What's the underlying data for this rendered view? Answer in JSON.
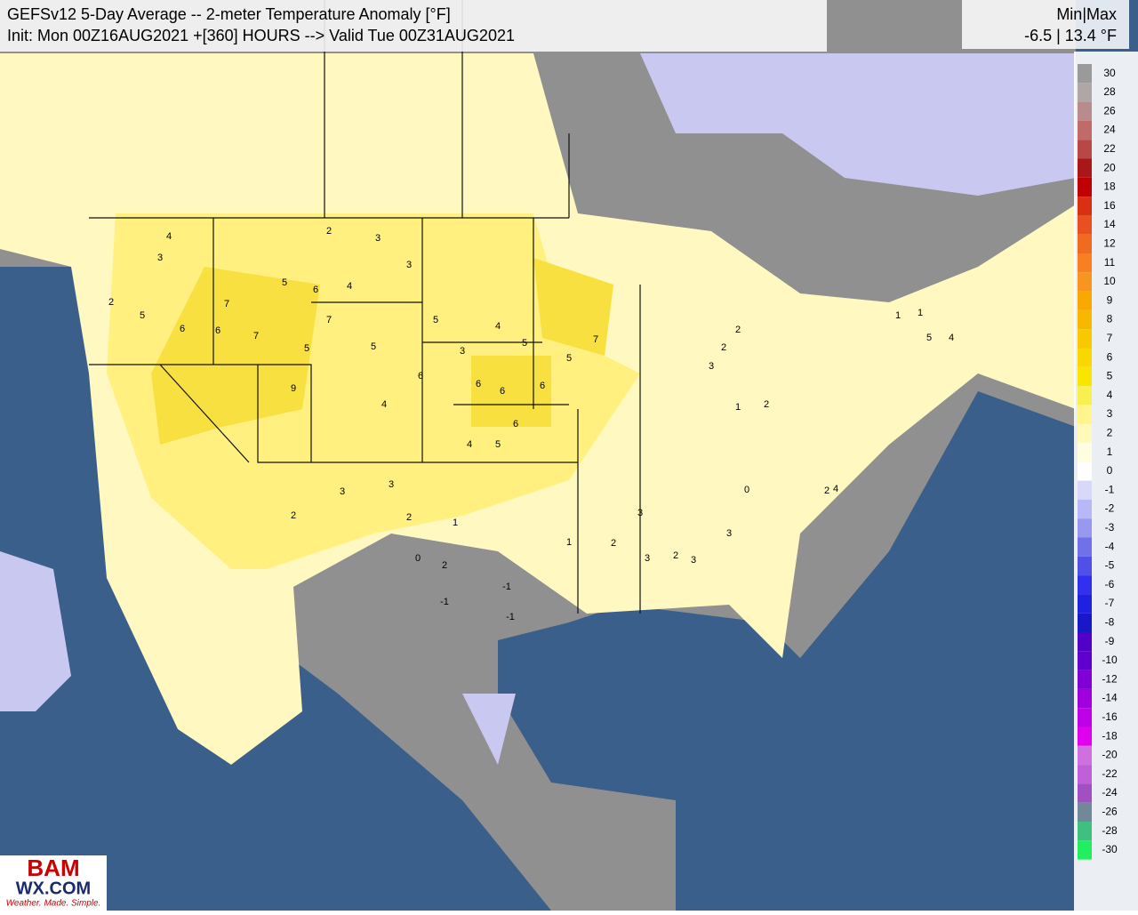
{
  "header": {
    "title": "GEFSv12 5-Day Average -- 2-meter Temperature Anomaly [°F]",
    "subtitle": "Init: Mon 00Z16AUG2021 +[360] HOURS --> Valid Tue 00Z31AUG2021",
    "minmax_label": "Min|Max",
    "minmax_value": "-6.5 | 13.4 °F"
  },
  "colorbar": {
    "levels": [
      30,
      28,
      26,
      24,
      22,
      20,
      18,
      16,
      14,
      12,
      11,
      10,
      9,
      8,
      7,
      6,
      5,
      4,
      3,
      2,
      1,
      0,
      -1,
      -2,
      -3,
      -4,
      -5,
      -6,
      -7,
      -8,
      -9,
      -10,
      -12,
      -14,
      -16,
      -18,
      -20,
      -22,
      -24,
      -26,
      -28,
      -30
    ],
    "colors": [
      "#9a9a9a",
      "#b0a6a6",
      "#b88c8c",
      "#c06a6a",
      "#b84848",
      "#a81818",
      "#c00000",
      "#d83010",
      "#e85020",
      "#f06a20",
      "#f88020",
      "#f89420",
      "#f8a800",
      "#f8b800",
      "#f8c800",
      "#f8d800",
      "#f8e600",
      "#f8f050",
      "#fff58a",
      "#fffaba",
      "#fffde0",
      "#ffffff",
      "#d8d8f8",
      "#b8b8f8",
      "#9898f0",
      "#7070e8",
      "#5050e8",
      "#3030f0",
      "#2020e0",
      "#1818c8",
      "#5000c8",
      "#6000d0",
      "#8000d8",
      "#a000e0",
      "#c000e8",
      "#e000f0",
      "#d070e0",
      "#c060d8",
      "#a050c0",
      "#708898",
      "#40c080",
      "#20f060"
    ]
  },
  "station_values": [
    4,
    3,
    5,
    2,
    6,
    7,
    7,
    6,
    9,
    5,
    5,
    6,
    7,
    4,
    5,
    2,
    3,
    3,
    5,
    6,
    4,
    3,
    4,
    5,
    6,
    6,
    7,
    5,
    6,
    6,
    5,
    4,
    3,
    2,
    3,
    2,
    1,
    2,
    -1,
    3,
    2,
    1,
    2,
    3,
    2,
    2,
    0,
    -1,
    1,
    2,
    3,
    3,
    3,
    4,
    2,
    1,
    1,
    5,
    4,
    0,
    -1
  ],
  "logo": {
    "brand": "BAM",
    "site": "WX.COM",
    "tagline": "Weather. Made. Simple."
  }
}
